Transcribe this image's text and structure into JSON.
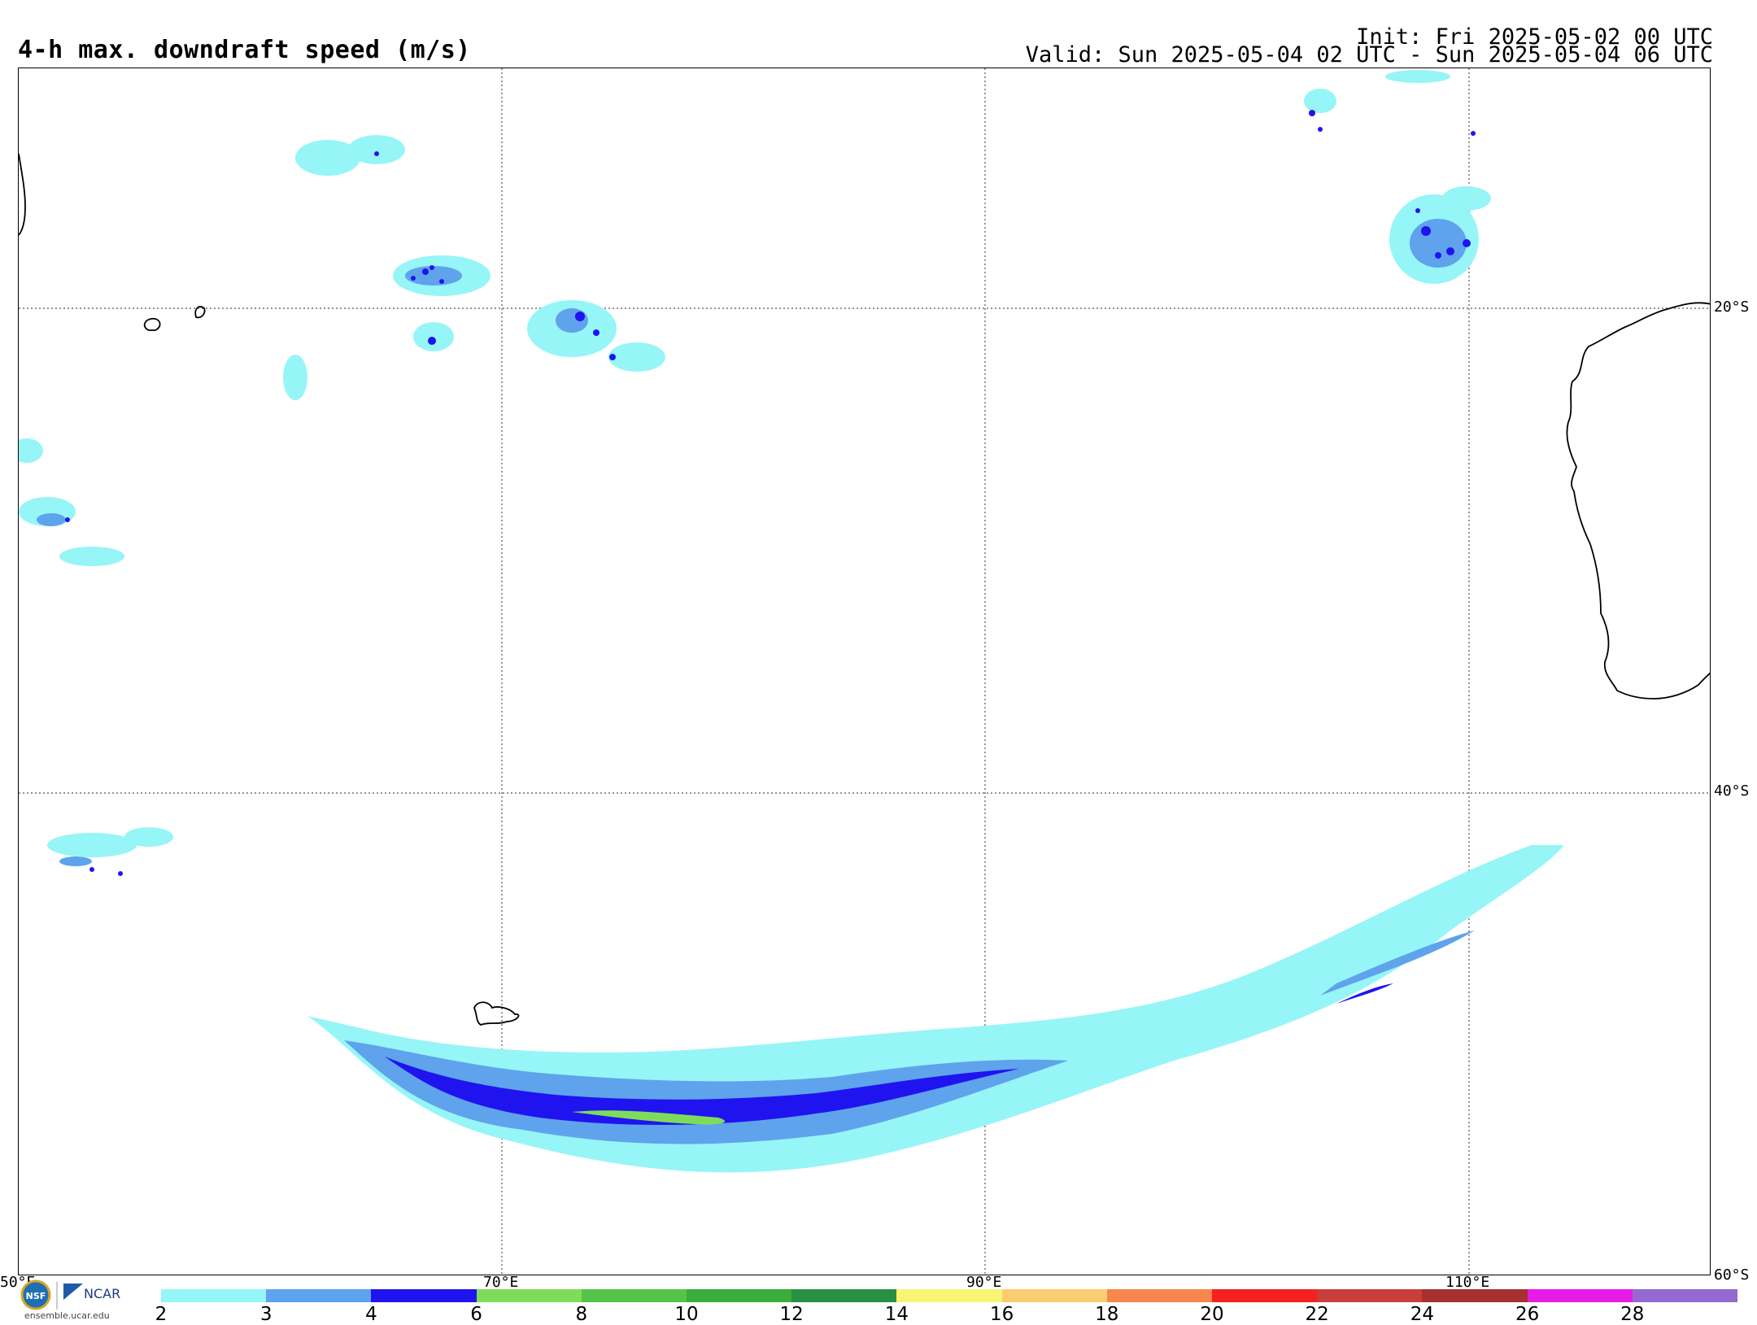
{
  "header": {
    "title": "4-h max. downdraft speed (m/s)",
    "init": "Init: Fri 2025-05-02 00 UTC",
    "valid": "Valid: Sun 2025-05-04 02 UTC - Sun 2025-05-04 06 UTC"
  },
  "map": {
    "lat_labels": [
      "20°S",
      "40°S",
      "60°S"
    ],
    "lon_labels": [
      "50°E",
      "70°E",
      "90°E",
      "110°E"
    ],
    "lon_range": [
      50,
      120
    ],
    "lat_range": [
      -10,
      -60
    ],
    "grid_lons": [
      70,
      90,
      110
    ],
    "grid_lats": [
      -20,
      -40
    ],
    "field_colors": {
      "light": "#96f5f7",
      "medium": "#5ea3eb",
      "dark": "#1f14f0",
      "green": "#7fdc5a"
    }
  },
  "colorbar": {
    "ticks": [
      "2",
      "3",
      "4",
      "6",
      "8",
      "10",
      "12",
      "14",
      "16",
      "18",
      "20",
      "22",
      "24",
      "26",
      "28"
    ],
    "colors": [
      "#96f5f7",
      "#5ea3eb",
      "#1f14f0",
      "#7fdc5a",
      "#55c54a",
      "#3aad3c",
      "#289042",
      "#f7f573",
      "#fbcd72",
      "#f7874f",
      "#f52121",
      "#c93d3d",
      "#a63030",
      "#e61be6",
      "#9569cf"
    ]
  },
  "logos": {
    "nsf": "NSF",
    "ncar": "NCAR",
    "url": "ensemble.ucar.edu"
  }
}
